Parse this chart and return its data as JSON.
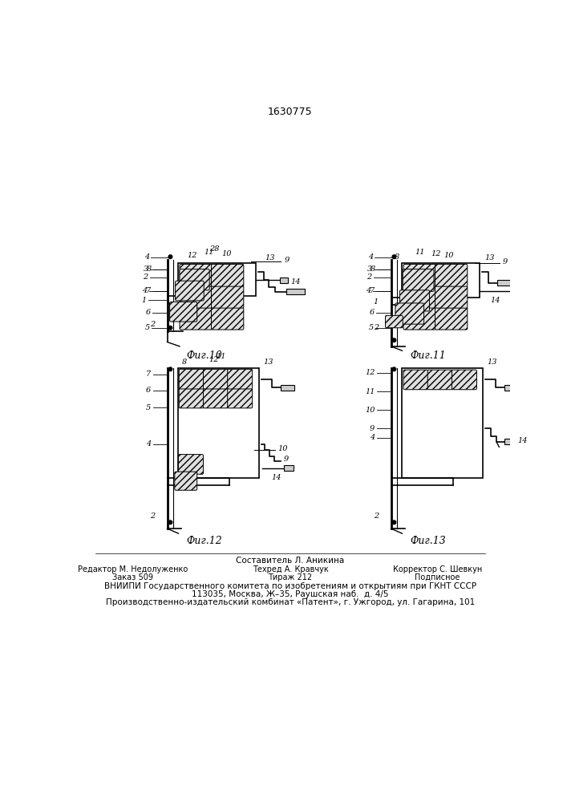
{
  "title_number": "1630775",
  "background_color": "#ffffff",
  "line_color": "#000000",
  "fig_captions": [
    "Фиг.10",
    "Фиг.11",
    "Фиг.12",
    "Фиг.13"
  ],
  "footer_line1": "Составитель Л. Аникина",
  "footer_col1_line1": "Редактор М. Недолуженко",
  "footer_col2_line1": "Техред А. Кравчук",
  "footer_col3_line1": "Корректор С. Шевкун",
  "footer_col1_line2": "Заказ 509",
  "footer_col2_line2": "Тираж 212",
  "footer_col3_line2": "Подписное",
  "footer_line3": "ВНИИПИ Государственного комитета по изобретениям и открытиям при ГКНТ СССР",
  "footer_line4": "113035, Москва, Ж–35, Раушская наб.  д. 4/5",
  "footer_line5": "Производственно-издательский комбинат «Патент», г. Ужгород, ул. Гагарина, 101"
}
